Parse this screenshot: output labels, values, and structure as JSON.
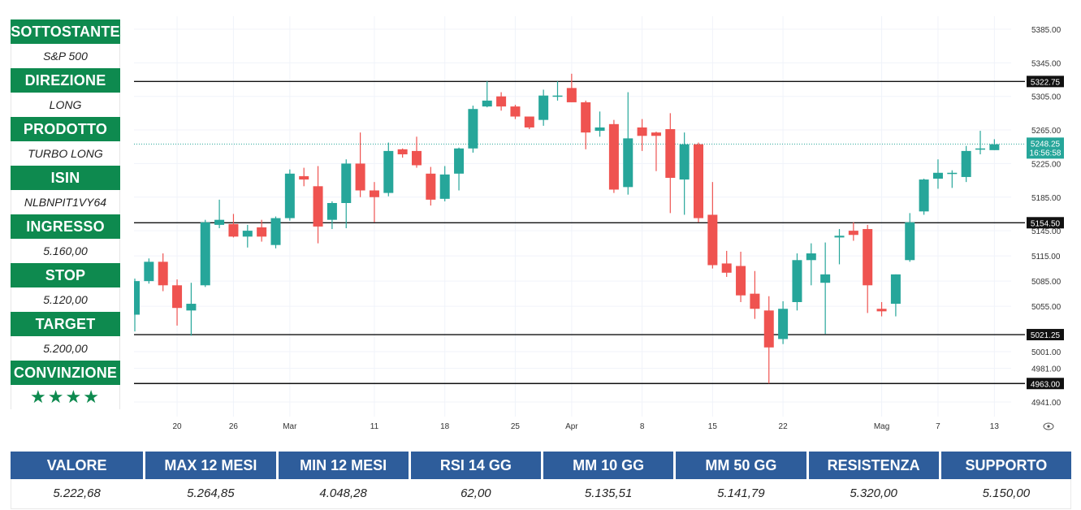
{
  "side_panel": [
    {
      "label": "SOTTOSTANTE",
      "value": "S&P 500"
    },
    {
      "label": "DIREZIONE",
      "value": "LONG"
    },
    {
      "label": "PRODOTTO",
      "value": "TURBO LONG"
    },
    {
      "label": "ISIN",
      "value": "NLBNPIT1VY64"
    },
    {
      "label": "INGRESSO",
      "value": "5.160,00"
    },
    {
      "label": "STOP",
      "value": "5.120,00"
    },
    {
      "label": "TARGET",
      "value": "5.200,00"
    },
    {
      "label": "CONVINZIONE",
      "value": "★★★★"
    }
  ],
  "stats": {
    "headers": [
      "VALORE",
      "MAX 12 MESI",
      "MIN 12 MESI",
      "RSI 14 GG",
      "MM 10 GG",
      "MM 50 GG",
      "RESISTENZA",
      "SUPPORTO"
    ],
    "values": [
      "5.222,68",
      "5.264,85",
      "4.048,28",
      "62,00",
      "5.135,51",
      "5.141,79",
      "5.320,00",
      "5.150,00"
    ]
  },
  "colors": {
    "green": "#26a69a",
    "red": "#ef5350",
    "panel_green": "#0e8a4f",
    "table_blue": "#2e5d9b"
  },
  "chart_data": {
    "type": "candlestick",
    "y_ticks": [
      4941,
      4981,
      5001,
      5055,
      5085,
      5115,
      5145,
      5185,
      5225,
      5265,
      5305,
      5345,
      5385
    ],
    "y_tick_labels": [
      "4941.00",
      "4981.00",
      "5001.00",
      "5055.00",
      "5085.00",
      "5115.00",
      "5145.00",
      "5185.00",
      "5225.00",
      "5265.00",
      "5305.00",
      "5345.00",
      "5385.00"
    ],
    "x_ticks": [
      {
        "label": "20",
        "bar": 3
      },
      {
        "label": "26",
        "bar": 7
      },
      {
        "label": "Mar",
        "bar": 11
      },
      {
        "label": "11",
        "bar": 17
      },
      {
        "label": "18",
        "bar": 22
      },
      {
        "label": "25",
        "bar": 27
      },
      {
        "label": "Apr",
        "bar": 31
      },
      {
        "label": "8",
        "bar": 36
      },
      {
        "label": "15",
        "bar": 41
      },
      {
        "label": "22",
        "bar": 46
      },
      {
        "label": "Mag",
        "bar": 53
      },
      {
        "label": "7",
        "bar": 57
      },
      {
        "label": "13",
        "bar": 61
      }
    ],
    "hlines": [
      {
        "price": 5322.75,
        "label": "5322.75"
      },
      {
        "price": 5154.5,
        "label": "5154.50"
      },
      {
        "price": 5021.25,
        "label": "5021.25"
      },
      {
        "price": 4963.0,
        "label": "4963.00"
      }
    ],
    "last_price": {
      "price": 5248.25,
      "label": "5248.25",
      "countdown": "16:56:58"
    },
    "candles": [
      {
        "o": 5045,
        "h": 5088,
        "l": 5025,
        "c": 5085
      },
      {
        "o": 5085,
        "h": 5112,
        "l": 5082,
        "c": 5108
      },
      {
        "o": 5108,
        "h": 5118,
        "l": 5073,
        "c": 5080
      },
      {
        "o": 5080,
        "h": 5087,
        "l": 5032,
        "c": 5053
      },
      {
        "o": 5050,
        "h": 5083,
        "l": 5020,
        "c": 5058
      },
      {
        "o": 5080,
        "h": 5158,
        "l": 5078,
        "c": 5155
      },
      {
        "o": 5152,
        "h": 5182,
        "l": 5148,
        "c": 5158
      },
      {
        "o": 5153,
        "h": 5165,
        "l": 5137,
        "c": 5138
      },
      {
        "o": 5138,
        "h": 5152,
        "l": 5125,
        "c": 5145
      },
      {
        "o": 5149,
        "h": 5158,
        "l": 5132,
        "c": 5138
      },
      {
        "o": 5128,
        "h": 5162,
        "l": 5124,
        "c": 5160
      },
      {
        "o": 5160,
        "h": 5218,
        "l": 5157,
        "c": 5213
      },
      {
        "o": 5210,
        "h": 5220,
        "l": 5198,
        "c": 5206
      },
      {
        "o": 5198,
        "h": 5222,
        "l": 5130,
        "c": 5150
      },
      {
        "o": 5158,
        "h": 5180,
        "l": 5147,
        "c": 5178
      },
      {
        "o": 5178,
        "h": 5230,
        "l": 5148,
        "c": 5225
      },
      {
        "o": 5225,
        "h": 5262,
        "l": 5185,
        "c": 5193
      },
      {
        "o": 5193,
        "h": 5203,
        "l": 5155,
        "c": 5185
      },
      {
        "o": 5190,
        "h": 5250,
        "l": 5186,
        "c": 5240
      },
      {
        "o": 5242,
        "h": 5243,
        "l": 5232,
        "c": 5236
      },
      {
        "o": 5240,
        "h": 5257,
        "l": 5220,
        "c": 5223
      },
      {
        "o": 5213,
        "h": 5221,
        "l": 5175,
        "c": 5182
      },
      {
        "o": 5183,
        "h": 5222,
        "l": 5180,
        "c": 5212
      },
      {
        "o": 5213,
        "h": 5244,
        "l": 5193,
        "c": 5243
      },
      {
        "o": 5243,
        "h": 5294,
        "l": 5238,
        "c": 5290
      },
      {
        "o": 5293,
        "h": 5323,
        "l": 5292,
        "c": 5300
      },
      {
        "o": 5305,
        "h": 5310,
        "l": 5288,
        "c": 5293
      },
      {
        "o": 5293,
        "h": 5295,
        "l": 5278,
        "c": 5281
      },
      {
        "o": 5281,
        "h": 5281,
        "l": 5266,
        "c": 5268
      },
      {
        "o": 5277,
        "h": 5313,
        "l": 5270,
        "c": 5306
      },
      {
        "o": 5306,
        "h": 5323,
        "l": 5300,
        "c": 5306
      },
      {
        "o": 5315,
        "h": 5332,
        "l": 5298,
        "c": 5298
      },
      {
        "o": 5298,
        "h": 5300,
        "l": 5242,
        "c": 5262
      },
      {
        "o": 5264,
        "h": 5287,
        "l": 5257,
        "c": 5268
      },
      {
        "o": 5272,
        "h": 5277,
        "l": 5190,
        "c": 5194
      },
      {
        "o": 5197,
        "h": 5310,
        "l": 5188,
        "c": 5255
      },
      {
        "o": 5268,
        "h": 5278,
        "l": 5240,
        "c": 5258
      },
      {
        "o": 5262,
        "h": 5263,
        "l": 5216,
        "c": 5258
      },
      {
        "o": 5266,
        "h": 5285,
        "l": 5166,
        "c": 5208
      },
      {
        "o": 5206,
        "h": 5262,
        "l": 5164,
        "c": 5248
      },
      {
        "o": 5248,
        "h": 5250,
        "l": 5155,
        "c": 5160
      },
      {
        "o": 5164,
        "h": 5203,
        "l": 5100,
        "c": 5104
      },
      {
        "o": 5106,
        "h": 5121,
        "l": 5090,
        "c": 5095
      },
      {
        "o": 5103,
        "h": 5120,
        "l": 5060,
        "c": 5068
      },
      {
        "o": 5070,
        "h": 5097,
        "l": 5040,
        "c": 5052
      },
      {
        "o": 5050,
        "h": 5067,
        "l": 4963,
        "c": 5006
      },
      {
        "o": 5016,
        "h": 5061,
        "l": 5010,
        "c": 5052
      },
      {
        "o": 5060,
        "h": 5118,
        "l": 5050,
        "c": 5110
      },
      {
        "o": 5110,
        "h": 5130,
        "l": 5080,
        "c": 5118
      },
      {
        "o": 5083,
        "h": 5131,
        "l": 5022,
        "c": 5093
      },
      {
        "o": 5137,
        "h": 5147,
        "l": 5105,
        "c": 5139
      },
      {
        "o": 5145,
        "h": 5155,
        "l": 5133,
        "c": 5140
      },
      {
        "o": 5147,
        "h": 5152,
        "l": 5047,
        "c": 5080
      },
      {
        "o": 5052,
        "h": 5060,
        "l": 5043,
        "c": 5049
      },
      {
        "o": 5058,
        "h": 5093,
        "l": 5043,
        "c": 5093
      },
      {
        "o": 5110,
        "h": 5166,
        "l": 5108,
        "c": 5155
      },
      {
        "o": 5168,
        "h": 5207,
        "l": 5164,
        "c": 5206
      },
      {
        "o": 5207,
        "h": 5230,
        "l": 5195,
        "c": 5214
      },
      {
        "o": 5214,
        "h": 5217,
        "l": 5196,
        "c": 5214
      },
      {
        "o": 5209,
        "h": 5246,
        "l": 5203,
        "c": 5240
      },
      {
        "o": 5243,
        "h": 5264,
        "l": 5236,
        "c": 5243
      },
      {
        "o": 5241,
        "h": 5254,
        "l": 5241,
        "c": 5248
      }
    ]
  }
}
